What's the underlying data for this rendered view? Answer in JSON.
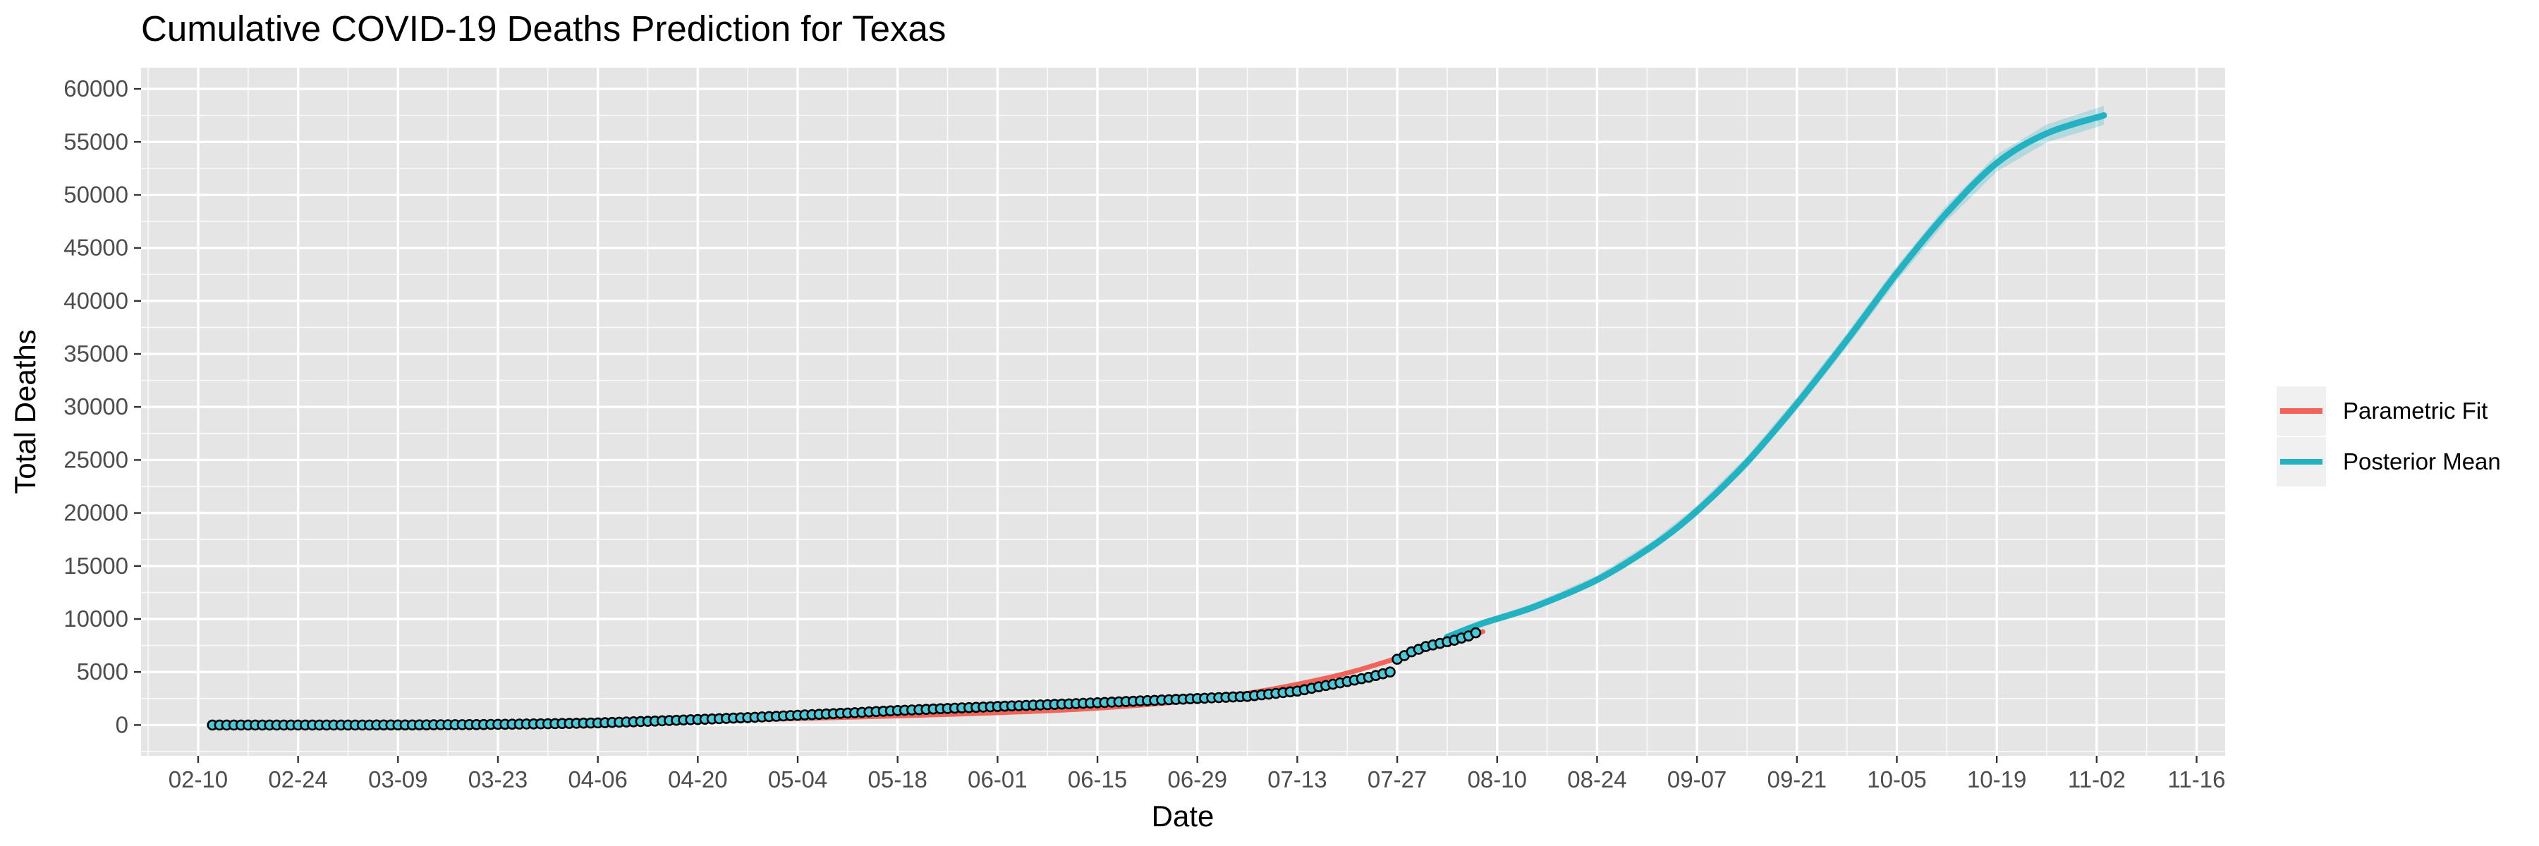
{
  "chart_data": {
    "type": "line",
    "title": "Cumulative COVID-19 Deaths Prediction for Texas",
    "xlabel": "Date",
    "ylabel": "Total Deaths",
    "x_type": "date",
    "x_year": 2020,
    "xlim": [
      "2020-02-02",
      "2020-11-20"
    ],
    "ylim": [
      -2900,
      62000
    ],
    "x_ticks": [
      "2020-02-10",
      "2020-02-24",
      "2020-03-09",
      "2020-03-23",
      "2020-04-06",
      "2020-04-20",
      "2020-05-04",
      "2020-05-18",
      "2020-06-01",
      "2020-06-15",
      "2020-06-29",
      "2020-07-13",
      "2020-07-27",
      "2020-08-10",
      "2020-08-24",
      "2020-09-07",
      "2020-09-21",
      "2020-10-05",
      "2020-10-19",
      "2020-11-02",
      "2020-11-16"
    ],
    "x_tick_labels": [
      "02-10",
      "02-24",
      "03-09",
      "03-23",
      "04-06",
      "04-20",
      "05-04",
      "05-18",
      "06-01",
      "06-15",
      "06-29",
      "07-13",
      "07-27",
      "08-10",
      "08-24",
      "09-07",
      "09-21",
      "10-05",
      "10-19",
      "11-02",
      "11-16"
    ],
    "y_ticks": [
      0,
      5000,
      10000,
      15000,
      20000,
      25000,
      30000,
      35000,
      40000,
      45000,
      50000,
      55000,
      60000
    ],
    "y_tick_labels": [
      "0",
      "5000",
      "10000",
      "15000",
      "20000",
      "25000",
      "30000",
      "35000",
      "40000",
      "45000",
      "50000",
      "55000",
      "60000"
    ],
    "grid": true,
    "legend_position": "right",
    "legend": [
      "Parametric Fit",
      "Posterior Mean"
    ],
    "colors": {
      "panel_background": "#e5e5e5",
      "grid_major": "#ffffff",
      "parametric_fit": "#f0645a",
      "posterior_mean": "#22b2c2",
      "observed_fill": "#4cc8d8",
      "observed_stroke": "#000000",
      "legend_key_background": "#f0f0f0"
    },
    "series": [
      {
        "name": "Parametric Fit",
        "x": [
          "2020-02-12",
          "2020-03-01",
          "2020-03-20",
          "2020-04-10",
          "2020-04-30",
          "2020-05-20",
          "2020-06-10",
          "2020-06-25",
          "2020-07-05",
          "2020-07-12",
          "2020-07-20",
          "2020-07-27",
          "2020-08-03",
          "2020-08-08"
        ],
        "y": [
          0,
          10,
          60,
          250,
          550,
          900,
          1400,
          2100,
          2900,
          3700,
          4900,
          6300,
          7800,
          8800
        ]
      },
      {
        "name": "Posterior Mean",
        "x": [
          "2020-08-03",
          "2020-08-08",
          "2020-08-15",
          "2020-08-24",
          "2020-09-01",
          "2020-09-07",
          "2020-09-14",
          "2020-09-21",
          "2020-09-28",
          "2020-10-05",
          "2020-10-12",
          "2020-10-19",
          "2020-10-26",
          "2020-11-03"
        ],
        "y": [
          8300,
          9600,
          11100,
          13700,
          17000,
          20200,
          24800,
          30300,
          36300,
          42600,
          48300,
          53000,
          55800,
          57500
        ]
      },
      {
        "name": "Observed",
        "type": "scatter",
        "x": [
          "2020-02-12",
          "2020-02-20",
          "2020-03-01",
          "2020-03-10",
          "2020-03-20",
          "2020-03-30",
          "2020-04-06",
          "2020-04-13",
          "2020-04-20",
          "2020-04-27",
          "2020-05-04",
          "2020-05-11",
          "2020-05-18",
          "2020-05-25",
          "2020-06-01",
          "2020-06-08",
          "2020-06-15",
          "2020-06-22",
          "2020-06-29",
          "2020-07-06",
          "2020-07-13",
          "2020-07-16",
          "2020-07-20",
          "2020-07-23",
          "2020-07-26",
          "2020-07-27",
          "2020-07-29",
          "2020-07-31",
          "2020-08-02",
          "2020-08-04",
          "2020-08-06",
          "2020-08-07"
        ],
        "y": [
          0,
          0,
          0,
          5,
          40,
          120,
          200,
          350,
          520,
          700,
          920,
          1130,
          1370,
          1560,
          1750,
          1920,
          2100,
          2300,
          2500,
          2700,
          3200,
          3600,
          4100,
          4500,
          5000,
          6200,
          6900,
          7400,
          7700,
          8000,
          8400,
          8700
        ]
      }
    ]
  }
}
